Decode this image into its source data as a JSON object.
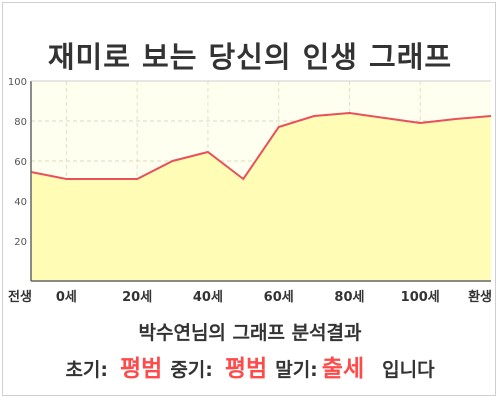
{
  "title": "재미로 보는 당신의 인생 그래프",
  "summary": "박수연님의 그래프 분석결과",
  "result": {
    "early_label": "초기:",
    "early_value": "평범",
    "mid_label": "중기:",
    "mid_value": "평범",
    "late_label": "말기:",
    "late_value": "출세",
    "suffix": "입니다"
  },
  "colors": {
    "line": "#e8505b",
    "fill": "#fffcb5",
    "plot_bg": "#fffff0"
  },
  "chart_data": {
    "type": "area",
    "title": "",
    "xlabel": "",
    "ylabel": "",
    "xlim": [
      -10,
      120
    ],
    "ylim": [
      0,
      100
    ],
    "yticks": [
      20,
      40,
      60,
      80,
      100
    ],
    "xtick_labels": [
      {
        "x": -10,
        "label": "전생"
      },
      {
        "x": 0,
        "label": "0세"
      },
      {
        "x": 20,
        "label": "20세"
      },
      {
        "x": 40,
        "label": "40세"
      },
      {
        "x": 60,
        "label": "60세"
      },
      {
        "x": 80,
        "label": "80세"
      },
      {
        "x": 100,
        "label": "100세"
      },
      {
        "x": 120,
        "label": "환생"
      }
    ],
    "grid": true,
    "x": [
      -10,
      0,
      10,
      20,
      30,
      40,
      50,
      60,
      70,
      80,
      90,
      100,
      110,
      120
    ],
    "values": [
      54.5,
      51,
      51,
      51,
      60,
      64.5,
      51,
      77,
      82.5,
      84,
      81.5,
      79,
      81,
      82.5
    ]
  }
}
